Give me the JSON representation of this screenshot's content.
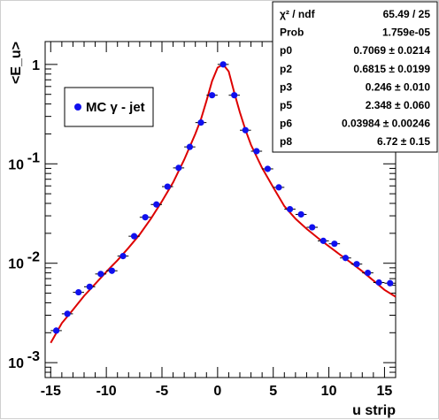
{
  "chart_data": {
    "type": "scatter",
    "xlabel": "u strip",
    "ylabel": "<E_u>",
    "xlim": [
      -15.5,
      16
    ],
    "ylim_log10": [
      -3.15,
      0.23
    ],
    "y_scale": "log",
    "x_tick_labels": [
      "-15",
      "-10",
      "-5",
      "0",
      "5",
      "10",
      "15"
    ],
    "x_ticks": [
      -15,
      -10,
      -5,
      0,
      5,
      10,
      15
    ],
    "y_ticks": [
      {
        "exp": -3,
        "label": "10",
        "sup": "-3"
      },
      {
        "exp": -2,
        "label": "10",
        "sup": "-2"
      },
      {
        "exp": -1,
        "label": "10",
        "sup": "-1"
      },
      {
        "exp": 0,
        "label": "1",
        "sup": ""
      }
    ],
    "legend": {
      "label": "MC γ - jet",
      "position": "top-left"
    },
    "colors": {
      "points": "#1010ee",
      "fit": "#dd0000",
      "frame": "#000000"
    },
    "series": [
      {
        "name": "MC γ - jet",
        "x": [
          -14.5,
          -13.5,
          -12.5,
          -11.5,
          -10.5,
          -9.5,
          -8.5,
          -7.5,
          -6.5,
          -5.5,
          -4.5,
          -3.5,
          -2.5,
          -1.5,
          -0.5,
          0.5,
          1.5,
          2.5,
          3.5,
          4.5,
          5.5,
          6.5,
          7.5,
          8.5,
          9.5,
          10.5,
          11.5,
          12.5,
          13.5,
          14.5,
          15.5
        ],
        "y": [
          0.0021,
          0.0031,
          0.0051,
          0.0058,
          0.0078,
          0.0084,
          0.0118,
          0.0187,
          0.029,
          0.039,
          0.059,
          0.091,
          0.148,
          0.26,
          0.49,
          1.0,
          0.49,
          0.218,
          0.134,
          0.089,
          0.058,
          0.035,
          0.031,
          0.023,
          0.0168,
          0.0157,
          0.0113,
          0.0098,
          0.008,
          0.0064,
          0.0063
        ]
      }
    ],
    "fit_curve": {
      "x": [
        -15,
        -14,
        -13,
        -12,
        -11,
        -10,
        -9,
        -8,
        -7,
        -6,
        -5,
        -4,
        -3,
        -2,
        -1.5,
        -1,
        -0.5,
        0,
        0.5,
        1,
        1.5,
        2,
        2.5,
        3,
        4,
        5,
        6,
        7,
        8,
        9,
        10,
        11,
        12,
        13,
        14,
        15,
        16
      ],
      "y": [
        0.00158,
        0.0025,
        0.0034,
        0.0047,
        0.0062,
        0.0082,
        0.0107,
        0.0143,
        0.0195,
        0.028,
        0.042,
        0.065,
        0.11,
        0.2,
        0.28,
        0.43,
        0.68,
        0.93,
        1.0,
        0.85,
        0.52,
        0.33,
        0.22,
        0.155,
        0.091,
        0.058,
        0.0375,
        0.028,
        0.0222,
        0.018,
        0.0148,
        0.0122,
        0.0101,
        0.0083,
        0.0067,
        0.0054,
        0.0046
      ]
    },
    "fit_stats": [
      {
        "name": "χ² / ndf",
        "value": "65.49 / 25"
      },
      {
        "name": "Prob",
        "value": "1.759e-05"
      },
      {
        "name": "p0",
        "value": "0.7069 ± 0.0214"
      },
      {
        "name": "p2",
        "value": "0.6815 ± 0.0199"
      },
      {
        "name": "p3",
        "value": "0.246 ± 0.010"
      },
      {
        "name": "p5",
        "value": "2.348 ± 0.060"
      },
      {
        "name": "p6",
        "value": "0.03984 ± 0.00246"
      },
      {
        "name": "p8",
        "value": "6.72 ± 0.15"
      }
    ]
  }
}
